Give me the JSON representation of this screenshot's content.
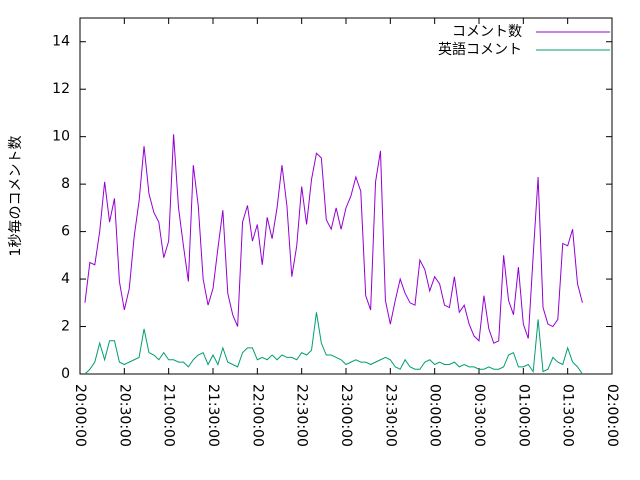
{
  "chart_data": {
    "type": "line",
    "y_label": "1秒毎のコメント数",
    "x": [
      "20:03:20",
      "20:06:40",
      "20:10:00",
      "20:13:20",
      "20:16:40",
      "20:20:00",
      "20:23:20",
      "20:26:40",
      "20:30:00",
      "20:33:20",
      "20:36:40",
      "20:40:00",
      "20:43:20",
      "20:46:40",
      "20:50:00",
      "20:53:20",
      "20:56:40",
      "21:00:00",
      "21:03:20",
      "21:06:40",
      "21:10:00",
      "21:13:20",
      "21:16:40",
      "21:20:00",
      "21:23:20",
      "21:26:40",
      "21:30:00",
      "21:33:20",
      "21:36:40",
      "21:40:00",
      "21:43:20",
      "21:46:40",
      "21:50:00",
      "21:53:20",
      "21:56:40",
      "22:00:00",
      "22:03:20",
      "22:06:40",
      "22:10:00",
      "22:13:20",
      "22:16:40",
      "22:20:00",
      "22:23:20",
      "22:26:40",
      "22:30:00",
      "22:33:20",
      "22:36:40",
      "22:40:00",
      "22:43:20",
      "22:46:40",
      "22:50:00",
      "22:53:20",
      "22:56:40",
      "23:00:00",
      "23:03:20",
      "23:06:40",
      "23:10:00",
      "23:13:20",
      "23:16:40",
      "23:20:00",
      "23:23:20",
      "23:26:40",
      "23:30:00",
      "23:33:20",
      "23:36:40",
      "23:40:00",
      "23:43:20",
      "23:46:40",
      "23:50:00",
      "23:53:20",
      "23:56:40",
      "00:00:00",
      "00:03:20",
      "00:06:40",
      "00:10:00",
      "00:13:20",
      "00:16:40",
      "00:20:00",
      "00:23:20",
      "00:26:40",
      "00:30:00",
      "00:33:20",
      "00:36:40",
      "00:40:00",
      "00:43:20",
      "00:46:40",
      "00:50:00",
      "00:53:20",
      "00:56:40",
      "01:00:00",
      "01:03:20",
      "01:06:40",
      "01:10:00",
      "01:13:20",
      "01:16:40",
      "01:20:00",
      "01:23:20",
      "01:26:40",
      "01:30:00",
      "01:33:20",
      "01:36:40",
      "01:40:00"
    ],
    "series": [
      {
        "name": "コメント数",
        "color": "#9400d3",
        "values": [
          3.0,
          4.7,
          4.6,
          6.0,
          8.1,
          6.4,
          7.4,
          3.9,
          2.7,
          3.6,
          5.8,
          7.3,
          9.6,
          7.6,
          6.8,
          6.4,
          4.9,
          5.6,
          10.1,
          7.0,
          5.4,
          3.9,
          8.8,
          7.1,
          4.0,
          2.9,
          3.6,
          5.3,
          6.9,
          3.4,
          2.5,
          2.0,
          6.4,
          7.1,
          5.6,
          6.3,
          4.6,
          6.6,
          5.7,
          7.0,
          8.8,
          7.1,
          4.1,
          5.4,
          7.9,
          6.3,
          8.2,
          9.3,
          9.1,
          6.5,
          6.1,
          7.0,
          6.1,
          7.0,
          7.5,
          8.3,
          7.7,
          3.3,
          2.7,
          8.1,
          9.4,
          3.1,
          2.1,
          3.1,
          4.0,
          3.4,
          3.0,
          2.9,
          4.8,
          4.4,
          3.5,
          4.1,
          3.8,
          2.9,
          2.8,
          4.1,
          2.6,
          2.9,
          2.1,
          1.6,
          1.4,
          3.3,
          1.9,
          1.3,
          1.4,
          5.0,
          3.1,
          2.5,
          4.5,
          2.1,
          1.5,
          5.0,
          8.3,
          2.8,
          2.1,
          2.0,
          2.3,
          5.5,
          5.4,
          6.1,
          3.8,
          3.0
        ]
      },
      {
        "name": "英語コメント",
        "color": "#009e73",
        "values": [
          0.0,
          0.2,
          0.5,
          1.3,
          0.6,
          1.4,
          1.4,
          0.5,
          0.4,
          0.5,
          0.6,
          0.7,
          1.9,
          0.9,
          0.8,
          0.6,
          0.9,
          0.6,
          0.6,
          0.5,
          0.5,
          0.3,
          0.6,
          0.8,
          0.9,
          0.4,
          0.8,
          0.4,
          1.1,
          0.5,
          0.4,
          0.3,
          0.9,
          1.1,
          1.1,
          0.6,
          0.7,
          0.6,
          0.8,
          0.6,
          0.8,
          0.7,
          0.7,
          0.6,
          0.9,
          0.8,
          1.0,
          2.6,
          1.3,
          0.8,
          0.8,
          0.7,
          0.6,
          0.4,
          0.5,
          0.6,
          0.5,
          0.5,
          0.4,
          0.5,
          0.6,
          0.7,
          0.6,
          0.3,
          0.2,
          0.6,
          0.3,
          0.2,
          0.2,
          0.5,
          0.6,
          0.4,
          0.5,
          0.4,
          0.4,
          0.5,
          0.3,
          0.4,
          0.3,
          0.3,
          0.2,
          0.2,
          0.3,
          0.2,
          0.2,
          0.3,
          0.8,
          0.9,
          0.3,
          0.3,
          0.4,
          0.1,
          2.3,
          0.1,
          0.2,
          0.7,
          0.5,
          0.4,
          1.1,
          0.5,
          0.3,
          0.0
        ]
      }
    ],
    "xlim": [
      "20:00:00",
      "02:00:00"
    ],
    "xticks": [
      "20:00:00",
      "20:30:00",
      "21:00:00",
      "21:30:00",
      "22:00:00",
      "22:30:00",
      "23:00:00",
      "23:30:00",
      "00:00:00",
      "00:30:00",
      "01:00:00",
      "01:30:00",
      "02:00:00"
    ],
    "ylim": [
      0,
      15
    ],
    "yticks": [
      0,
      2,
      4,
      6,
      8,
      10,
      12,
      14
    ],
    "legend": "top-right"
  }
}
